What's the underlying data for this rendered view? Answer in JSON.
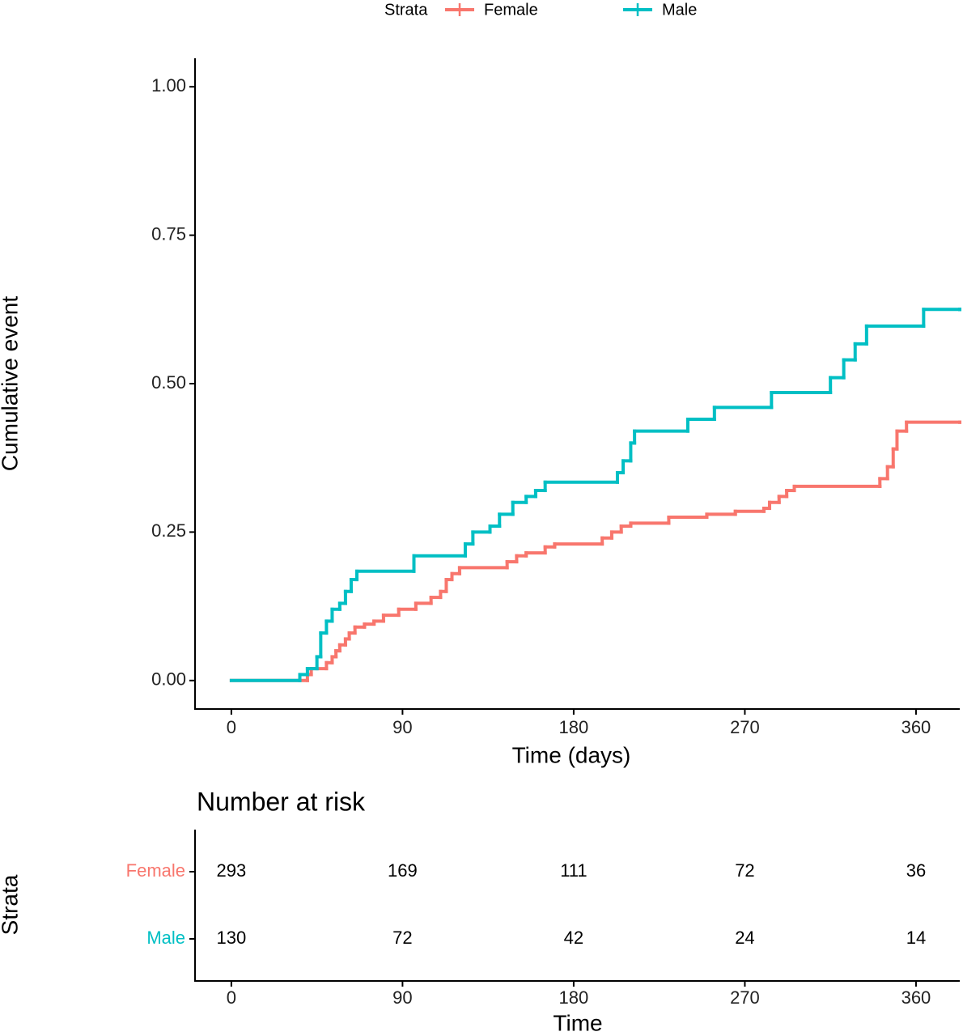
{
  "chart_data": [
    {
      "type": "step",
      "legend_title": "Strata",
      "xlabel": "Time (days)",
      "ylabel": "Cumulative event",
      "xlim": [
        -19.1,
        383
      ],
      "ylim": [
        -0.048,
        1.048
      ],
      "xticks": [
        0,
        90,
        180,
        270,
        360
      ],
      "yticks": [
        {
          "value": 0,
          "label": "0.00"
        },
        0.25,
        {
          "value": 0.5,
          "label": "0.50"
        },
        0.75,
        {
          "value": 1,
          "label": "1.00"
        }
      ],
      "series": [
        {
          "name": "Female",
          "color": "#F8766D",
          "x": [
            0,
            40,
            42,
            50,
            53,
            55,
            57,
            60,
            62,
            65,
            70,
            75,
            80,
            88,
            97,
            105,
            110,
            113,
            116,
            120,
            145,
            150,
            155,
            165,
            170,
            195,
            200,
            205,
            210,
            230,
            250,
            265,
            280,
            283,
            288,
            292,
            296,
            341,
            345,
            348,
            350,
            355,
            383
          ],
          "values": [
            0,
            0.01,
            0.02,
            0.03,
            0.04,
            0.05,
            0.06,
            0.07,
            0.08,
            0.09,
            0.095,
            0.1,
            0.11,
            0.12,
            0.13,
            0.14,
            0.15,
            0.17,
            0.18,
            0.19,
            0.2,
            0.21,
            0.215,
            0.225,
            0.23,
            0.24,
            0.25,
            0.26,
            0.265,
            0.275,
            0.28,
            0.285,
            0.29,
            0.3,
            0.31,
            0.32,
            0.327,
            0.34,
            0.36,
            0.39,
            0.42,
            0.435,
            0.435
          ]
        },
        {
          "name": "Male",
          "color": "#00BFC4",
          "x": [
            0,
            36,
            40,
            45,
            47,
            50,
            53,
            57,
            60,
            63,
            66,
            96,
            123,
            127,
            136,
            141,
            148,
            155,
            160,
            165,
            203,
            206,
            210,
            212,
            240,
            254,
            284,
            315,
            322,
            328,
            334,
            364,
            383
          ],
          "values": [
            0,
            0.01,
            0.02,
            0.04,
            0.08,
            0.1,
            0.12,
            0.13,
            0.15,
            0.17,
            0.184,
            0.21,
            0.23,
            0.25,
            0.26,
            0.28,
            0.3,
            0.31,
            0.32,
            0.334,
            0.35,
            0.37,
            0.4,
            0.42,
            0.44,
            0.46,
            0.485,
            0.51,
            0.54,
            0.567,
            0.597,
            0.625,
            0.625
          ]
        }
      ]
    },
    {
      "type": "risk_table",
      "title": "Number at risk",
      "xlabel": "Time",
      "ylabel": "Strata",
      "xlim": [
        -19.1,
        383
      ],
      "xticks": [
        0,
        90,
        180,
        270,
        360
      ],
      "x": [
        0,
        90,
        180,
        270,
        360
      ],
      "series": [
        {
          "name": "Female",
          "color": "#F8766D",
          "values": [
            293,
            169,
            111,
            72,
            36
          ]
        },
        {
          "name": "Male",
          "color": "#00BFC4",
          "values": [
            130,
            72,
            42,
            24,
            14
          ]
        }
      ]
    }
  ]
}
